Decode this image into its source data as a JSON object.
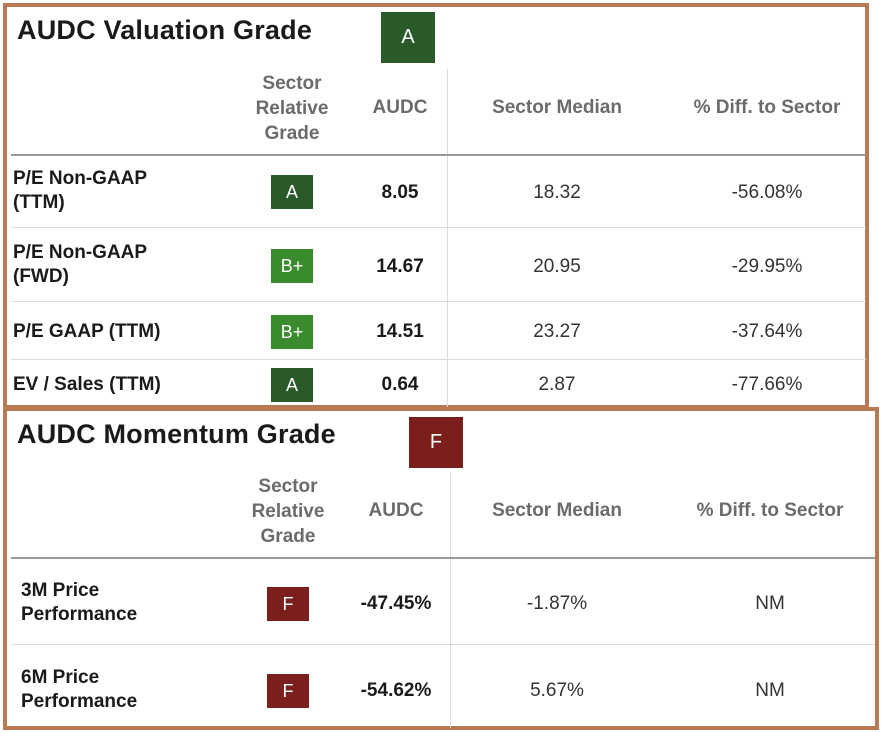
{
  "colors": {
    "border": "#b87a52",
    "grade_A": "#2a5a2a",
    "grade_B_plus": "#3a8a2e",
    "grade_F": "#7a1f1c"
  },
  "valuation": {
    "title": "AUDC Valuation Grade",
    "overall_grade": "A",
    "headers": {
      "sector_relative_grade_line1": "Sector",
      "sector_relative_grade_line2": "Relative",
      "sector_relative_grade_line3": "Grade",
      "ticker": "AUDC",
      "sector_median": "Sector Median",
      "pct_diff": "% Diff. to Sector"
    },
    "rows": [
      {
        "label_line1": "P/E Non-GAAP",
        "label_line2": "(TTM)",
        "grade": "A",
        "value": "8.05",
        "sector_median": "18.32",
        "pct_diff": "-56.08%"
      },
      {
        "label_line1": "P/E Non-GAAP",
        "label_line2": "(FWD)",
        "grade": "B+",
        "value": "14.67",
        "sector_median": "20.95",
        "pct_diff": "-29.95%"
      },
      {
        "label_line1": "P/E GAAP (TTM)",
        "label_line2": "",
        "grade": "B+",
        "value": "14.51",
        "sector_median": "23.27",
        "pct_diff": "-37.64%"
      },
      {
        "label_line1": "EV / Sales (TTM)",
        "label_line2": "",
        "grade": "A",
        "value": "0.64",
        "sector_median": "2.87",
        "pct_diff": "-77.66%"
      }
    ]
  },
  "momentum": {
    "title": "AUDC Momentum Grade",
    "overall_grade": "F",
    "headers": {
      "sector_relative_grade_line1": "Sector",
      "sector_relative_grade_line2": "Relative",
      "sector_relative_grade_line3": "Grade",
      "ticker": "AUDC",
      "sector_median": "Sector Median",
      "pct_diff": "% Diff. to Sector"
    },
    "rows": [
      {
        "label_line1": "3M Price",
        "label_line2": "Performance",
        "grade": "F",
        "value": "-47.45%",
        "sector_median": "-1.87%",
        "pct_diff": "NM"
      },
      {
        "label_line1": "6M Price",
        "label_line2": "Performance",
        "grade": "F",
        "value": "-54.62%",
        "sector_median": "5.67%",
        "pct_diff": "NM"
      }
    ]
  }
}
